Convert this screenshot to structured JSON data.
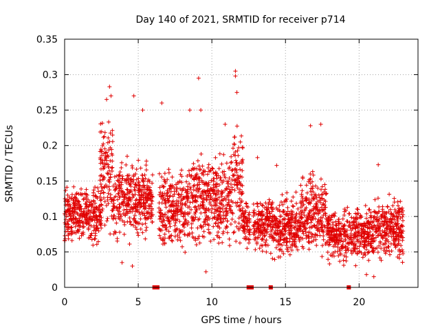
{
  "chart_data": {
    "type": "scatter",
    "title": "Day 140 of 2021, SRMTID for receiver p714",
    "xlabel": "GPS time / hours",
    "ylabel": "SRMTID / TECUs",
    "xlim": [
      0,
      24
    ],
    "ylim": [
      0,
      0.35
    ],
    "x_ticks": [
      0,
      5,
      10,
      15,
      20
    ],
    "x_tick_labels": [
      "0",
      "5",
      "10",
      "15",
      "20"
    ],
    "y_ticks": [
      0,
      0.05,
      0.1,
      0.15,
      0.2,
      0.25,
      0.3,
      0.35
    ],
    "y_tick_labels": [
      "0",
      "0.05",
      "0.1",
      "0.15",
      "0.2",
      "0.25",
      "0.3",
      "0.35"
    ],
    "grid": true,
    "marker": "+",
    "marker_color": "#e00000",
    "data_gap_markers_x": [
      6.1,
      6.3,
      12.5,
      12.7,
      14.0,
      19.3
    ],
    "series": [
      {
        "name": "SRMTID",
        "time_windows": [
          {
            "x": [
              0.0,
              2.5
            ],
            "y_center": 0.1,
            "y_spread": 0.035
          },
          {
            "x": [
              2.4,
              3.3
            ],
            "y_center": 0.16,
            "y_spread": 0.06
          },
          {
            "x": [
              3.3,
              6.0
            ],
            "y_center": 0.125,
            "y_spread": 0.045
          },
          {
            "x": [
              6.4,
              8.5
            ],
            "y_center": 0.11,
            "y_spread": 0.045
          },
          {
            "x": [
              8.5,
              10.3
            ],
            "y_center": 0.125,
            "y_spread": 0.05
          },
          {
            "x": [
              10.3,
              11.3
            ],
            "y_center": 0.12,
            "y_spread": 0.05
          },
          {
            "x": [
              11.3,
              12.1
            ],
            "y_center": 0.15,
            "y_spread": 0.07
          },
          {
            "x": [
              12.1,
              12.6
            ],
            "y_center": 0.09,
            "y_spread": 0.03
          },
          {
            "x": [
              12.8,
              14.0
            ],
            "y_center": 0.09,
            "y_spread": 0.03
          },
          {
            "x": [
              14.0,
              16.0
            ],
            "y_center": 0.085,
            "y_spread": 0.035
          },
          {
            "x": [
              16.0,
              17.8
            ],
            "y_center": 0.105,
            "y_spread": 0.045
          },
          {
            "x": [
              17.8,
              21.0
            ],
            "y_center": 0.075,
            "y_spread": 0.03
          },
          {
            "x": [
              21.0,
              23.0
            ],
            "y_center": 0.085,
            "y_spread": 0.035
          }
        ],
        "peak_samples": [
          {
            "x": 2.85,
            "y": 0.265
          },
          {
            "x": 3.05,
            "y": 0.283
          },
          {
            "x": 3.15,
            "y": 0.27
          },
          {
            "x": 4.7,
            "y": 0.27
          },
          {
            "x": 5.3,
            "y": 0.25
          },
          {
            "x": 6.6,
            "y": 0.26
          },
          {
            "x": 8.5,
            "y": 0.25
          },
          {
            "x": 9.1,
            "y": 0.295
          },
          {
            "x": 9.25,
            "y": 0.25
          },
          {
            "x": 10.9,
            "y": 0.23
          },
          {
            "x": 11.6,
            "y": 0.305
          },
          {
            "x": 11.6,
            "y": 0.298
          },
          {
            "x": 11.7,
            "y": 0.275
          },
          {
            "x": 17.4,
            "y": 0.23
          },
          {
            "x": 16.7,
            "y": 0.228
          },
          {
            "x": 21.3,
            "y": 0.173
          },
          {
            "x": 13.1,
            "y": 0.183
          },
          {
            "x": 14.4,
            "y": 0.172
          },
          {
            "x": 4.6,
            "y": 0.03
          },
          {
            "x": 9.6,
            "y": 0.022
          },
          {
            "x": 20.5,
            "y": 0.018
          },
          {
            "x": 21.0,
            "y": 0.015
          },
          {
            "x": 3.9,
            "y": 0.035
          }
        ]
      }
    ]
  }
}
